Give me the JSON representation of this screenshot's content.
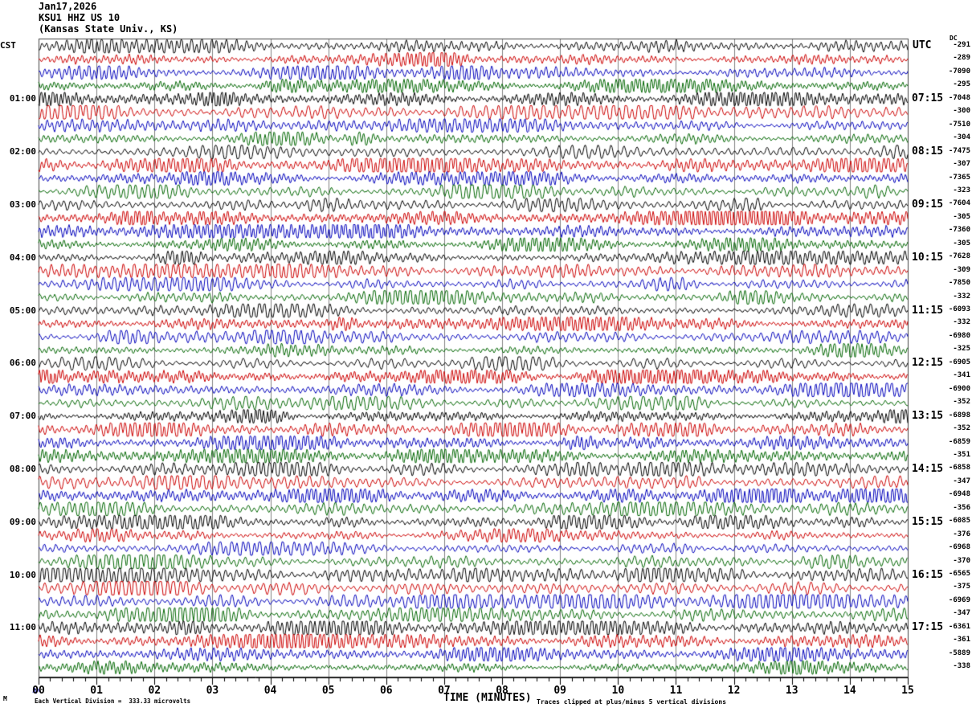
{
  "header": {
    "date_line": "Jan17,2026",
    "station_line": "KSU1 HHZ US 10",
    "site_line": "(Kansas State Univ., KS)"
  },
  "left_axis": {
    "header": "CST",
    "hour_labels": [
      "01:00",
      "02:00",
      "03:00",
      "04:00",
      "05:00",
      "06:00",
      "07:00",
      "08:00",
      "09:00",
      "10:00",
      "11:00"
    ]
  },
  "right_axis": {
    "header": "UTC",
    "time_labels": [
      "07:15",
      "08:15",
      "09:15",
      "10:15",
      "11:15",
      "12:15",
      "13:15",
      "14:15",
      "15:15",
      "16:15",
      "17:15"
    ],
    "dc_header": "DC",
    "dc_values": [
      "-291",
      "-289",
      "-7090",
      "-295",
      "-7048",
      "-300",
      "-7510",
      "-304",
      "-7475",
      "-307",
      "-7365",
      "-323",
      "-7604",
      "-305",
      "-7360",
      "-305",
      "-7628",
      "-309",
      "-7850",
      "-332",
      "-6093",
      "-332",
      "-6980",
      "-325",
      "-6905",
      "-341",
      "-6900",
      "-352",
      "-6898",
      "-352",
      "-6859",
      "-351",
      "-6858",
      "-347",
      "-6948",
      "-356",
      "-6085",
      "-376",
      "-6968",
      "-370",
      "-6565",
      "-375",
      "-6969",
      "-347",
      "-6361",
      "-361",
      "-5889",
      "-338"
    ]
  },
  "x_axis": {
    "title": "TIME (MINUTES)",
    "tick_labels": [
      "00",
      "01",
      "02",
      "03",
      "04",
      "05",
      "06",
      "07",
      "08",
      "09",
      "10",
      "11",
      "12",
      "13",
      "14",
      "15"
    ]
  },
  "footer": {
    "corner_mark": "M",
    "scale_note": "Each Vertical Division =  333.33 microvolts",
    "clip_note": "Traces clipped at plus/minus 5 vertical divisions"
  },
  "colors": {
    "trace_cycle": [
      "#000000",
      "#cc0000",
      "#0000bb",
      "#006600"
    ],
    "grid": "#808080",
    "border": "#444444",
    "axis": "#000000",
    "background": "#ffffff",
    "text": "#000000"
  },
  "chart_data": {
    "type": "line",
    "subtype": "seismogram-helicorder",
    "title": "KSU1 HHZ US 10",
    "subtitle": "(Kansas State Univ., KS) — Jan17,2026",
    "xlabel": "TIME (MINUTES)",
    "x_range": [
      0,
      15
    ],
    "x_tick_labels": [
      "00",
      "01",
      "02",
      "03",
      "04",
      "05",
      "06",
      "07",
      "08",
      "09",
      "10",
      "11",
      "12",
      "13",
      "14",
      "15"
    ],
    "minutes_per_line": 15,
    "lines": 48,
    "lines_per_hour": 4,
    "trace_color_cycle": [
      "black",
      "red",
      "blue",
      "green"
    ],
    "left_timezone": "CST",
    "right_timezone": "UTC",
    "left_hour_labels": [
      "01:00",
      "02:00",
      "03:00",
      "04:00",
      "05:00",
      "06:00",
      "07:00",
      "08:00",
      "09:00",
      "10:00",
      "11:00"
    ],
    "right_hour_labels": [
      "07:15",
      "08:15",
      "09:15",
      "10:15",
      "11:15",
      "12:15",
      "13:15",
      "14:15",
      "15:15",
      "16:15",
      "17:15"
    ],
    "dc_offsets_per_line": [
      "-291",
      "-289",
      "-7090",
      "-295",
      "-7048",
      "-300",
      "-7510",
      "-304",
      "-7475",
      "-307",
      "-7365",
      "-323",
      "-7604",
      "-305",
      "-7360",
      "-305",
      "-7628",
      "-309",
      "-7850",
      "-332",
      "-6093",
      "-332",
      "-6980",
      "-325",
      "-6905",
      "-341",
      "-6900",
      "-352",
      "-6898",
      "-352",
      "-6859",
      "-351",
      "-6858",
      "-347",
      "-6948",
      "-356",
      "-6085",
      "-376",
      "-6968",
      "-370",
      "-6565",
      "-375",
      "-6969",
      "-347",
      "-6361",
      "-361",
      "-5889",
      "-338"
    ],
    "vertical_scale": "Each Vertical Division = 333.33 microvolts",
    "clipping": "Traces clipped at plus/minus 5 vertical divisions",
    "grid": "vertical gray line at every minute",
    "note": "Continuous microseism-like oscillation on every trace; individual sample values are not labeled in the source image."
  }
}
